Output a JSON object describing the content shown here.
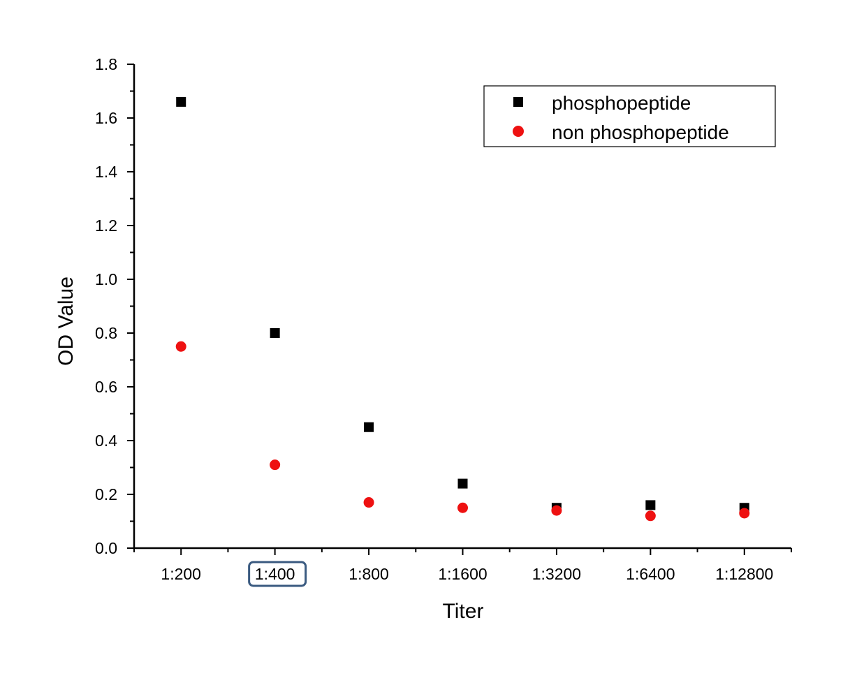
{
  "chart_data": {
    "type": "scatter",
    "title": "",
    "xlabel": "Titer",
    "ylabel": "OD Value",
    "categories": [
      "1:200",
      "1:400",
      "1:800",
      "1:1600",
      "1:3200",
      "1:6400",
      "1:12800"
    ],
    "ylim": [
      0,
      1.8
    ],
    "yticks": [
      "0.0",
      "0.2",
      "0.4",
      "0.6",
      "0.8",
      "1.0",
      "1.2",
      "1.4",
      "1.6",
      "1.8"
    ],
    "grid": false,
    "legend_position": "top-right",
    "highlighted_tick": "1:400",
    "highlight_color": "#3a5a80",
    "series": [
      {
        "name": "phosphopeptide",
        "marker": "square",
        "color": "#000000",
        "values": [
          1.66,
          0.8,
          0.45,
          0.24,
          0.15,
          0.16,
          0.15
        ]
      },
      {
        "name": "non phosphopeptide",
        "marker": "circle",
        "color": "#ee1111",
        "values": [
          0.75,
          0.31,
          0.17,
          0.15,
          0.14,
          0.12,
          0.13
        ]
      }
    ]
  }
}
